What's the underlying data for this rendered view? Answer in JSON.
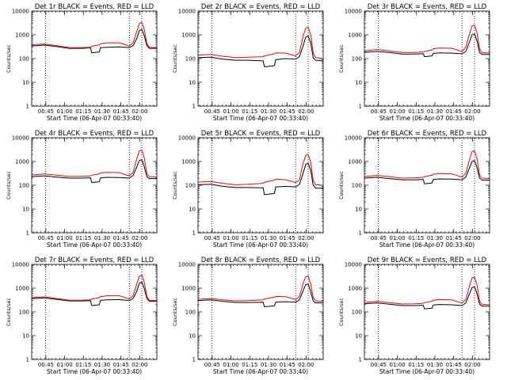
{
  "chart_data": [
    {
      "type": "line",
      "title": "Det 1r BLACK = Events, RED = LLD",
      "xlabel": "Start Time (06-Apr-07 00:33:40)",
      "ylabel": "Counts/sec",
      "yscale": "log",
      "ylim": [
        1,
        10000
      ],
      "xlim_minutes": [
        0,
        100
      ],
      "x_tick_labels": [
        "00:45",
        "01:00",
        "01:15",
        "01:30",
        "01:45",
        "02:00"
      ],
      "x_tick_minutes": [
        11.33,
        26.33,
        41.33,
        56.33,
        71.33,
        86.33
      ],
      "y_tick_labels": [
        "1",
        "10",
        "100",
        "1000",
        "10000"
      ],
      "y_tick_values": [
        1,
        10,
        100,
        1000,
        10000
      ],
      "vlines_minutes": [
        11,
        78,
        88
      ],
      "x_minutes": [
        0,
        10,
        20,
        30,
        40,
        47,
        48,
        54,
        55,
        60,
        70,
        78,
        81,
        84,
        86,
        88,
        90,
        92,
        94,
        100
      ],
      "series": [
        {
          "color": "#000000",
          "values": [
            340,
            370,
            320,
            270,
            270,
            285,
            175,
            190,
            290,
            300,
            310,
            290,
            350,
            700,
            1500,
            1700,
            900,
            350,
            270,
            270
          ]
        },
        {
          "color": "#ff0000",
          "values": [
            380,
            410,
            350,
            290,
            290,
            300,
            330,
            380,
            420,
            460,
            460,
            340,
            460,
            1400,
            3000,
            3400,
            1600,
            430,
            300,
            290
          ]
        }
      ]
    },
    {
      "type": "line",
      "title": "Det 2r BLACK = Events, RED = LLD",
      "xlabel": "Start Time (06-Apr-07 00:33:40)",
      "ylabel": "Counts/sec",
      "yscale": "log",
      "ylim": [
        1,
        10000
      ],
      "xlim_minutes": [
        0,
        100
      ],
      "x_tick_labels": [
        "00:45",
        "01:00",
        "01:15",
        "01:30",
        "01:45",
        "02:00"
      ],
      "x_tick_minutes": [
        11.33,
        26.33,
        41.33,
        56.33,
        71.33,
        86.33
      ],
      "y_tick_labels": [
        "1",
        "10",
        "100",
        "1000",
        "10000"
      ],
      "y_tick_values": [
        1,
        10,
        100,
        1000,
        10000
      ],
      "vlines_minutes": [
        11,
        78,
        88
      ],
      "x_minutes": [
        0,
        10,
        20,
        30,
        40,
        52,
        53,
        61,
        62,
        70,
        78,
        81,
        84,
        86,
        88,
        90,
        92,
        94,
        100
      ],
      "series": [
        {
          "color": "#000000",
          "values": [
            110,
            115,
            95,
            85,
            85,
            80,
            45,
            50,
            90,
            100,
            95,
            120,
            350,
            800,
            900,
            450,
            110,
            85,
            80
          ]
        },
        {
          "color": "#ff0000",
          "values": [
            140,
            150,
            125,
            110,
            115,
            120,
            130,
            160,
            175,
            170,
            130,
            180,
            900,
            1900,
            2100,
            1000,
            170,
            110,
            100
          ]
        }
      ]
    },
    {
      "type": "line",
      "title": "Det 3r BLACK = Events, RED = LLD",
      "xlabel": "Start Time (06-Apr-07 00:33:40)",
      "ylabel": "Counts/sec",
      "yscale": "log",
      "ylim": [
        1,
        10000
      ],
      "xlim_minutes": [
        0,
        100
      ],
      "x_tick_labels": [
        "00:45",
        "01:00",
        "01:15",
        "01:30",
        "01:45",
        "02:00"
      ],
      "x_tick_minutes": [
        11.33,
        26.33,
        41.33,
        56.33,
        71.33,
        86.33
      ],
      "y_tick_labels": [
        "1",
        "10",
        "100",
        "1000",
        "10000"
      ],
      "y_tick_values": [
        1,
        10,
        100,
        1000,
        10000
      ],
      "vlines_minutes": [
        11,
        78,
        88
      ],
      "x_minutes": [
        0,
        10,
        20,
        30,
        40,
        47,
        48,
        54,
        55,
        60,
        70,
        78,
        81,
        84,
        86,
        88,
        90,
        92,
        94,
        100
      ],
      "series": [
        {
          "color": "#000000",
          "values": [
            180,
            200,
            180,
            155,
            155,
            160,
            120,
            130,
            165,
            175,
            170,
            160,
            200,
            500,
            1000,
            1100,
            550,
            180,
            150,
            150
          ]
        },
        {
          "color": "#ff0000",
          "values": [
            210,
            240,
            210,
            180,
            180,
            190,
            200,
            230,
            260,
            280,
            270,
            200,
            300,
            1100,
            2400,
            2600,
            1200,
            250,
            180,
            170
          ]
        }
      ]
    },
    {
      "type": "line",
      "title": "Det 4r BLACK = Events, RED = LLD",
      "xlabel": "Start Time (06-Apr-07 00:33:40)",
      "ylabel": "Counts/sec",
      "yscale": "log",
      "ylim": [
        1,
        10000
      ],
      "xlim_minutes": [
        0,
        100
      ],
      "x_tick_labels": [
        "00:45",
        "01:00",
        "01:15",
        "01:30",
        "01:45",
        "02:00"
      ],
      "x_tick_minutes": [
        11.33,
        26.33,
        41.33,
        56.33,
        71.33,
        86.33
      ],
      "y_tick_labels": [
        "1",
        "10",
        "100",
        "1000",
        "10000"
      ],
      "y_tick_values": [
        1,
        10,
        100,
        1000,
        10000
      ],
      "vlines_minutes": [
        11,
        78,
        88
      ],
      "x_minutes": [
        0,
        10,
        20,
        30,
        40,
        47,
        48,
        54,
        55,
        60,
        70,
        78,
        81,
        84,
        86,
        88,
        90,
        92,
        94,
        100
      ],
      "series": [
        {
          "color": "#000000",
          "values": [
            230,
            250,
            220,
            200,
            200,
            205,
            130,
            140,
            205,
            215,
            210,
            200,
            260,
            600,
            1100,
            1200,
            600,
            230,
            190,
            190
          ]
        },
        {
          "color": "#ff0000",
          "values": [
            270,
            300,
            265,
            235,
            240,
            250,
            265,
            300,
            330,
            350,
            340,
            250,
            350,
            1300,
            2800,
            3000,
            1400,
            300,
            230,
            220
          ]
        }
      ]
    },
    {
      "type": "line",
      "title": "Det 5r BLACK = Events, RED = LLD",
      "xlabel": "Start Time (06-Apr-07 00:33:40)",
      "ylabel": "Counts/sec",
      "yscale": "log",
      "ylim": [
        1,
        10000
      ],
      "xlim_minutes": [
        0,
        100
      ],
      "x_tick_labels": [
        "00:45",
        "01:00",
        "01:15",
        "01:30",
        "01:45",
        "02:00"
      ],
      "x_tick_minutes": [
        11.33,
        26.33,
        41.33,
        56.33,
        71.33,
        86.33
      ],
      "y_tick_labels": [
        "1",
        "10",
        "100",
        "1000",
        "10000"
      ],
      "y_tick_values": [
        1,
        10,
        100,
        1000,
        10000
      ],
      "vlines_minutes": [
        11,
        78,
        88
      ],
      "x_minutes": [
        0,
        10,
        20,
        30,
        40,
        52,
        53,
        61,
        62,
        70,
        78,
        81,
        84,
        86,
        88,
        90,
        92,
        94,
        100
      ],
      "series": [
        {
          "color": "#000000",
          "values": [
            105,
            110,
            90,
            80,
            80,
            78,
            40,
            45,
            85,
            90,
            85,
            110,
            320,
            750,
            850,
            420,
            100,
            75,
            75
          ]
        },
        {
          "color": "#ff0000",
          "values": [
            135,
            145,
            120,
            105,
            110,
            120,
            135,
            165,
            180,
            170,
            130,
            170,
            850,
            1800,
            2000,
            950,
            160,
            105,
            100
          ]
        }
      ]
    },
    {
      "type": "line",
      "title": "Det 6r BLACK = Events, RED = LLD",
      "xlabel": "Start Time (06-Apr-07 00:33:40)",
      "ylabel": "Counts/sec",
      "yscale": "log",
      "ylim": [
        1,
        10000
      ],
      "xlim_minutes": [
        0,
        100
      ],
      "x_tick_labels": [
        "00:45",
        "01:00",
        "01:15",
        "01:30",
        "01:45",
        "02:00"
      ],
      "x_tick_minutes": [
        11.33,
        26.33,
        41.33,
        56.33,
        71.33,
        86.33
      ],
      "y_tick_labels": [
        "1",
        "10",
        "100",
        "1000",
        "10000"
      ],
      "y_tick_values": [
        1,
        10,
        100,
        1000,
        10000
      ],
      "vlines_minutes": [
        11,
        78,
        88
      ],
      "x_minutes": [
        0,
        10,
        20,
        30,
        40,
        47,
        48,
        54,
        55,
        60,
        70,
        78,
        81,
        84,
        86,
        88,
        90,
        92,
        94,
        100
      ],
      "series": [
        {
          "color": "#000000",
          "values": [
            200,
            215,
            190,
            170,
            170,
            175,
            115,
            125,
            175,
            185,
            180,
            170,
            220,
            550,
            1000,
            1100,
            550,
            200,
            165,
            165
          ]
        },
        {
          "color": "#ff0000",
          "values": [
            230,
            260,
            230,
            200,
            205,
            215,
            230,
            265,
            290,
            310,
            300,
            220,
            320,
            1200,
            2600,
            2800,
            1300,
            270,
            200,
            190
          ]
        }
      ]
    },
    {
      "type": "line",
      "title": "Det 7r BLACK = Events, RED = LLD",
      "xlabel": "Start Time (06-Apr-07 00:33:40)",
      "ylabel": "Counts/sec",
      "yscale": "log",
      "ylim": [
        1,
        10000
      ],
      "xlim_minutes": [
        0,
        100
      ],
      "x_tick_labels": [
        "00:45",
        "01:00",
        "01:15",
        "01:30",
        "01:45",
        "02:00"
      ],
      "x_tick_minutes": [
        11.33,
        26.33,
        41.33,
        56.33,
        71.33,
        86.33
      ],
      "y_tick_labels": [
        "1",
        "10",
        "100",
        "1000",
        "10000"
      ],
      "y_tick_values": [
        1,
        10,
        100,
        1000,
        10000
      ],
      "vlines_minutes": [
        11,
        78,
        88
      ],
      "x_minutes": [
        0,
        10,
        20,
        30,
        40,
        47,
        48,
        54,
        55,
        60,
        70,
        78,
        81,
        84,
        86,
        88,
        90,
        92,
        94,
        100
      ],
      "series": [
        {
          "color": "#000000",
          "values": [
            360,
            390,
            340,
            290,
            290,
            300,
            185,
            200,
            310,
            320,
            330,
            300,
            370,
            750,
            1600,
            1800,
            950,
            370,
            280,
            280
          ]
        },
        {
          "color": "#ff0000",
          "values": [
            400,
            430,
            370,
            310,
            310,
            320,
            350,
            400,
            440,
            480,
            480,
            350,
            480,
            1500,
            3200,
            3600,
            1700,
            450,
            310,
            300
          ]
        }
      ]
    },
    {
      "type": "line",
      "title": "Det 8r BLACK = Events, RED = LLD",
      "xlabel": "Start Time (06-Apr-07 00:33:40)",
      "ylabel": "Counts/sec",
      "yscale": "log",
      "ylim": [
        1,
        10000
      ],
      "xlim_minutes": [
        0,
        100
      ],
      "x_tick_labels": [
        "00:45",
        "01:00",
        "01:15",
        "01:30",
        "01:45",
        "02:00"
      ],
      "x_tick_minutes": [
        11.33,
        26.33,
        41.33,
        56.33,
        71.33,
        86.33
      ],
      "y_tick_labels": [
        "1",
        "10",
        "100",
        "1000",
        "10000"
      ],
      "y_tick_values": [
        1,
        10,
        100,
        1000,
        10000
      ],
      "vlines_minutes": [
        11,
        78,
        88
      ],
      "x_minutes": [
        0,
        10,
        20,
        30,
        40,
        52,
        53,
        61,
        62,
        70,
        78,
        81,
        84,
        86,
        88,
        90,
        92,
        94,
        100
      ],
      "series": [
        {
          "color": "#000000",
          "values": [
            300,
            320,
            280,
            250,
            250,
            255,
            165,
            180,
            260,
            270,
            260,
            320,
            800,
            1400,
            1500,
            700,
            290,
            240,
            240
          ]
        },
        {
          "color": "#ff0000",
          "values": [
            340,
            370,
            320,
            290,
            300,
            320,
            350,
            420,
            450,
            440,
            330,
            450,
            1600,
            3000,
            3300,
            1500,
            400,
            290,
            280
          ]
        }
      ]
    },
    {
      "type": "line",
      "title": "Det 9r BLACK = Events, RED = LLD",
      "xlabel": "Start Time (06-Apr-07 00:33:40)",
      "ylabel": "Counts/sec",
      "yscale": "log",
      "ylim": [
        1,
        10000
      ],
      "xlim_minutes": [
        0,
        100
      ],
      "x_tick_labels": [
        "00:45",
        "01:00",
        "01:15",
        "01:30",
        "01:45",
        "02:00"
      ],
      "x_tick_minutes": [
        11.33,
        26.33,
        41.33,
        56.33,
        71.33,
        86.33
      ],
      "y_tick_labels": [
        "1",
        "10",
        "100",
        "1000",
        "10000"
      ],
      "y_tick_values": [
        1,
        10,
        100,
        1000,
        10000
      ],
      "vlines_minutes": [
        11,
        78,
        88
      ],
      "x_minutes": [
        0,
        10,
        20,
        30,
        40,
        47,
        48,
        54,
        55,
        60,
        70,
        78,
        81,
        84,
        86,
        88,
        90,
        92,
        94,
        100
      ],
      "series": [
        {
          "color": "#000000",
          "values": [
            220,
            240,
            210,
            185,
            185,
            190,
            135,
            145,
            195,
            205,
            200,
            185,
            240,
            580,
            1050,
            1150,
            570,
            210,
            175,
            175
          ]
        },
        {
          "color": "#ff0000",
          "values": [
            250,
            280,
            245,
            215,
            220,
            230,
            245,
            280,
            310,
            330,
            320,
            235,
            330,
            1250,
            2700,
            2900,
            1350,
            280,
            210,
            200
          ]
        }
      ]
    }
  ]
}
